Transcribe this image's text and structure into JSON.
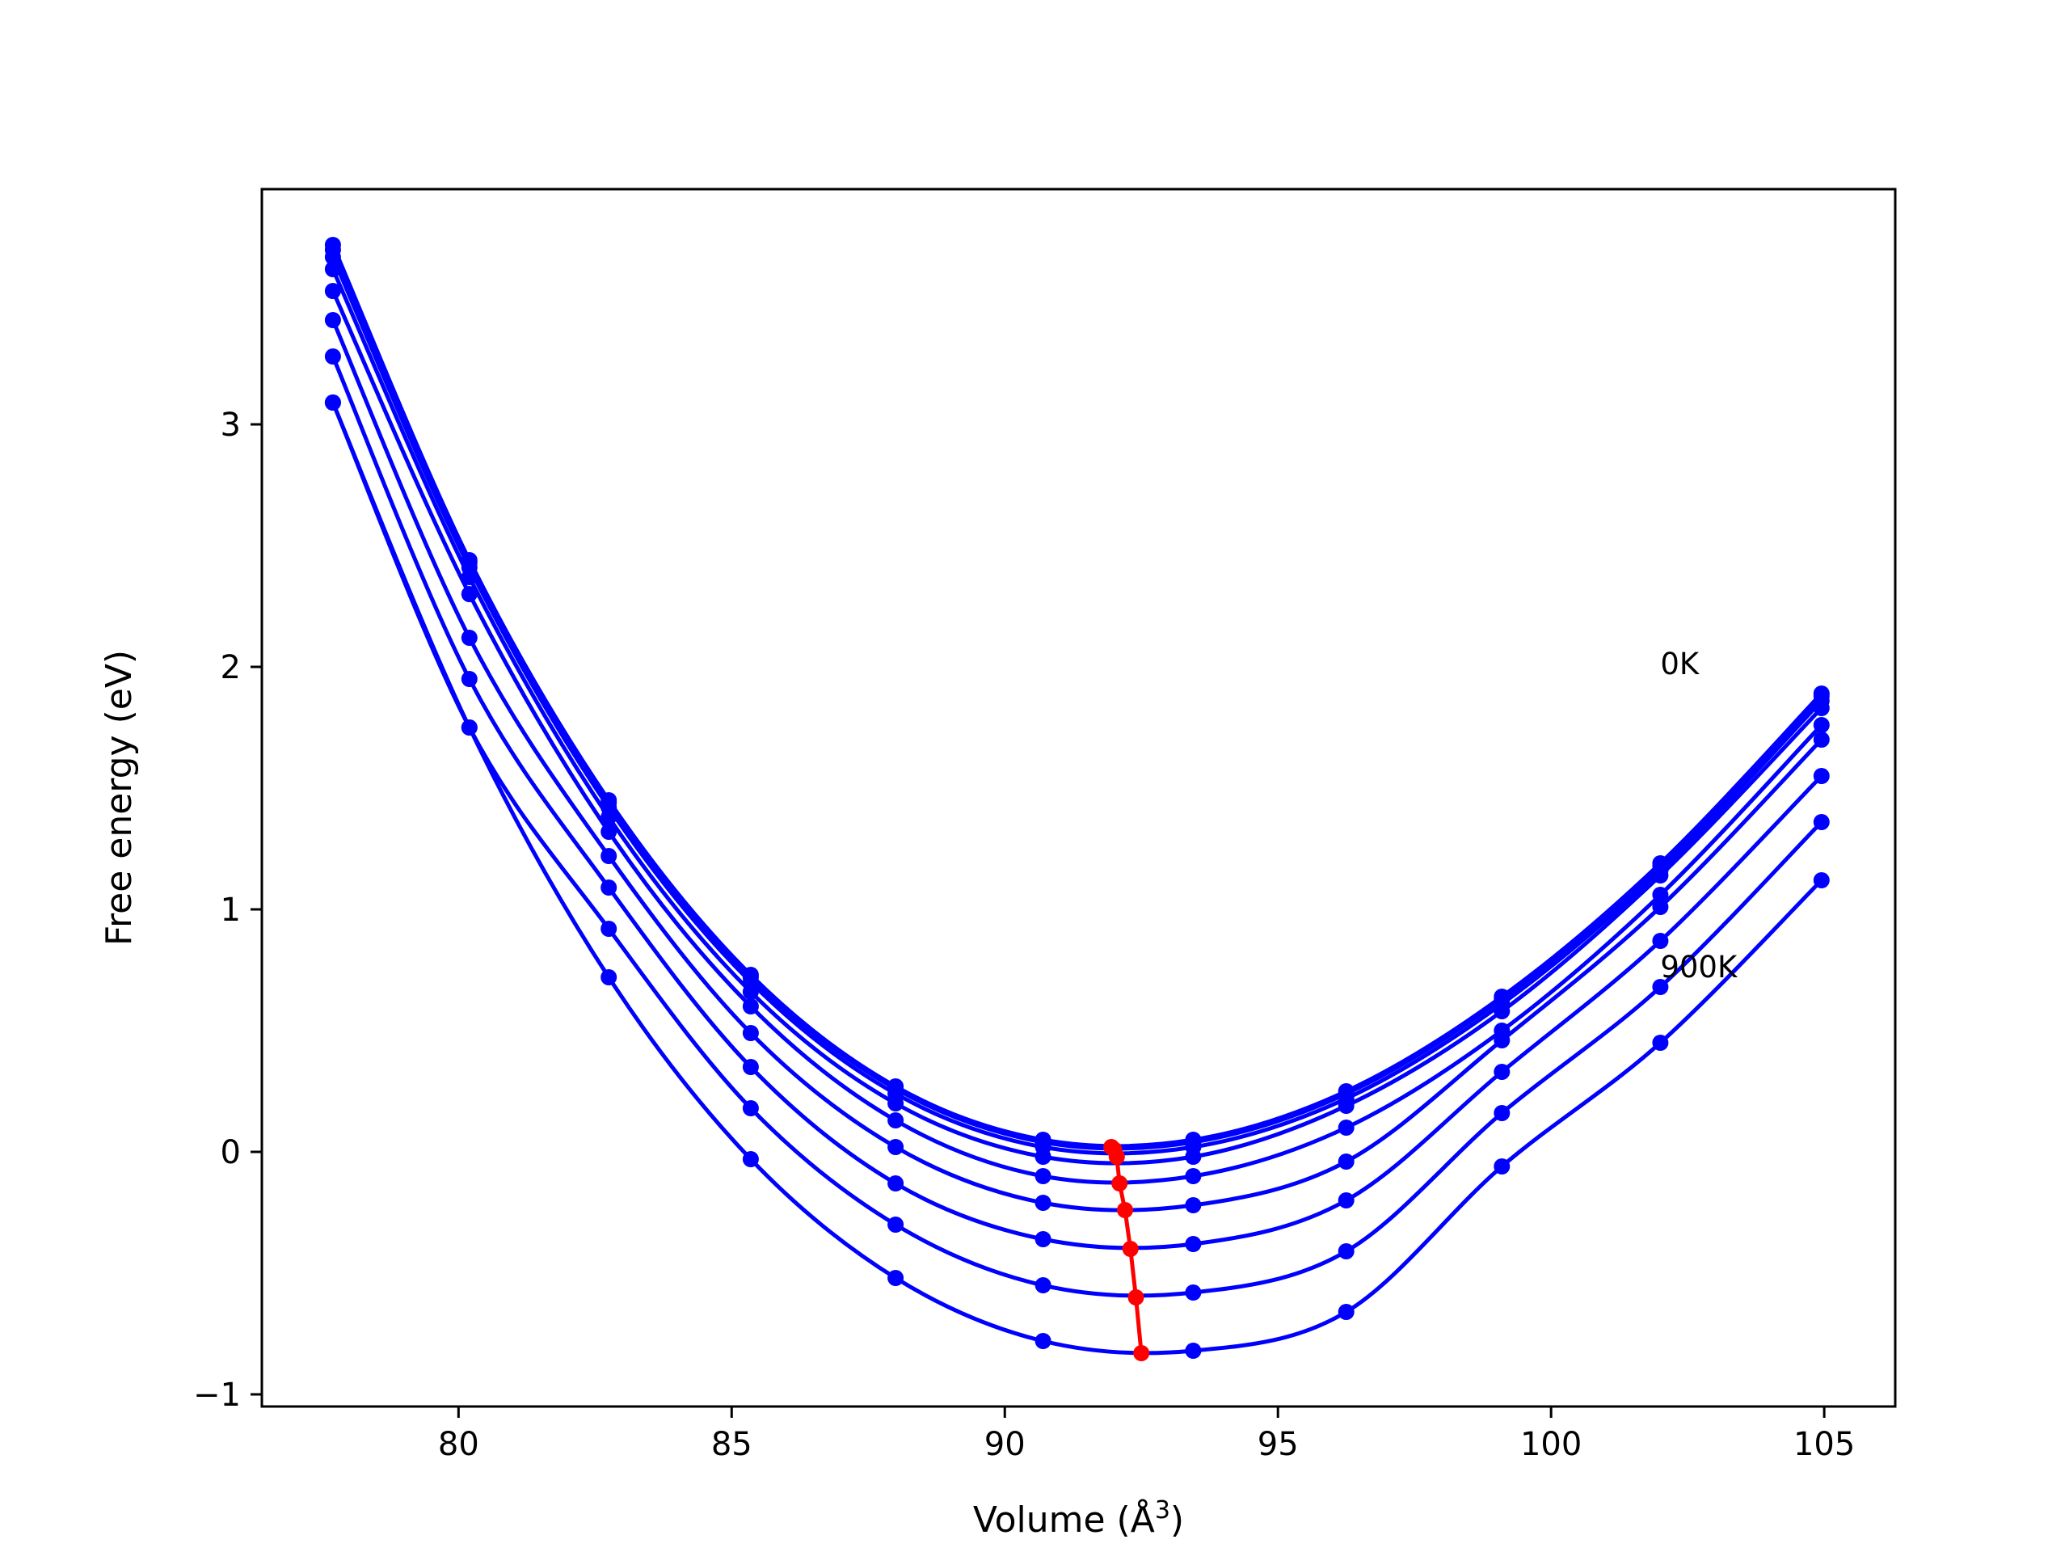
{
  "chart_data": {
    "type": "line",
    "title": "",
    "xlabel": "Volume (Å",
    "xlabel_superscript": "3",
    "xlabel_close": ")",
    "ylabel": "Free energy (eV)",
    "xlim": [
      76.4,
      106.3
    ],
    "ylim": [
      -1.05,
      3.97
    ],
    "xticks": [
      80,
      85,
      90,
      95,
      100,
      105
    ],
    "xtick_labels": [
      "80",
      "85",
      "90",
      "95",
      "100",
      "105"
    ],
    "yticks": [
      -1,
      0,
      1,
      2,
      3
    ],
    "ytick_labels": [
      "−1",
      "0",
      "1",
      "2",
      "3"
    ],
    "grid": false,
    "annotations": [
      {
        "text": "0K",
        "x": 102.0,
        "y": 1.97
      },
      {
        "text": "900K",
        "x": 102.0,
        "y": 0.72
      }
    ],
    "x": [
      77.7,
      80.2,
      82.75,
      85.35,
      88.0,
      90.7,
      93.45,
      96.25,
      99.1,
      102.0,
      104.95
    ],
    "series_color": "#0000ff",
    "series": [
      {
        "values": [
          3.74,
          2.44,
          1.45,
          0.73,
          0.27,
          0.05,
          0.05,
          0.25,
          0.64,
          1.19,
          1.89
        ]
      },
      {
        "values": [
          3.72,
          2.43,
          1.44,
          0.72,
          0.26,
          0.04,
          0.04,
          0.24,
          0.63,
          1.18,
          1.88
        ]
      },
      {
        "values": [
          3.69,
          2.41,
          1.42,
          0.7,
          0.24,
          0.02,
          0.02,
          0.22,
          0.61,
          1.16,
          1.86
        ]
      },
      {
        "values": [
          3.64,
          2.37,
          1.38,
          0.66,
          0.2,
          -0.02,
          -0.02,
          0.19,
          0.58,
          1.14,
          1.83
        ]
      },
      {
        "values": [
          3.55,
          2.3,
          1.32,
          0.6,
          0.13,
          -0.1,
          -0.1,
          0.1,
          0.5,
          1.06,
          1.76
        ]
      },
      {
        "values": [
          3.43,
          2.12,
          1.22,
          0.49,
          0.02,
          -0.21,
          -0.22,
          -0.04,
          0.46,
          1.01,
          1.7
        ]
      },
      {
        "values": [
          3.28,
          1.95,
          1.09,
          0.35,
          -0.13,
          -0.36,
          -0.38,
          -0.2,
          0.33,
          0.87,
          1.55
        ]
      },
      {
        "values": [
          3.09,
          1.75,
          0.92,
          0.18,
          -0.3,
          -0.55,
          -0.58,
          -0.41,
          0.16,
          0.68,
          1.36
        ]
      },
      {
        "values": [
          3.09,
          1.75,
          0.72,
          -0.03,
          -0.52,
          -0.78,
          -0.82,
          -0.66,
          -0.06,
          0.45,
          1.12
        ]
      }
    ],
    "minima": {
      "color": "#ff0000",
      "x": [
        91.95,
        92.0,
        92.05,
        92.1,
        92.2,
        92.3,
        92.4,
        92.5
      ],
      "y": [
        0.02,
        0.01,
        -0.02,
        -0.13,
        -0.24,
        -0.4,
        -0.6,
        -0.83
      ]
    }
  }
}
